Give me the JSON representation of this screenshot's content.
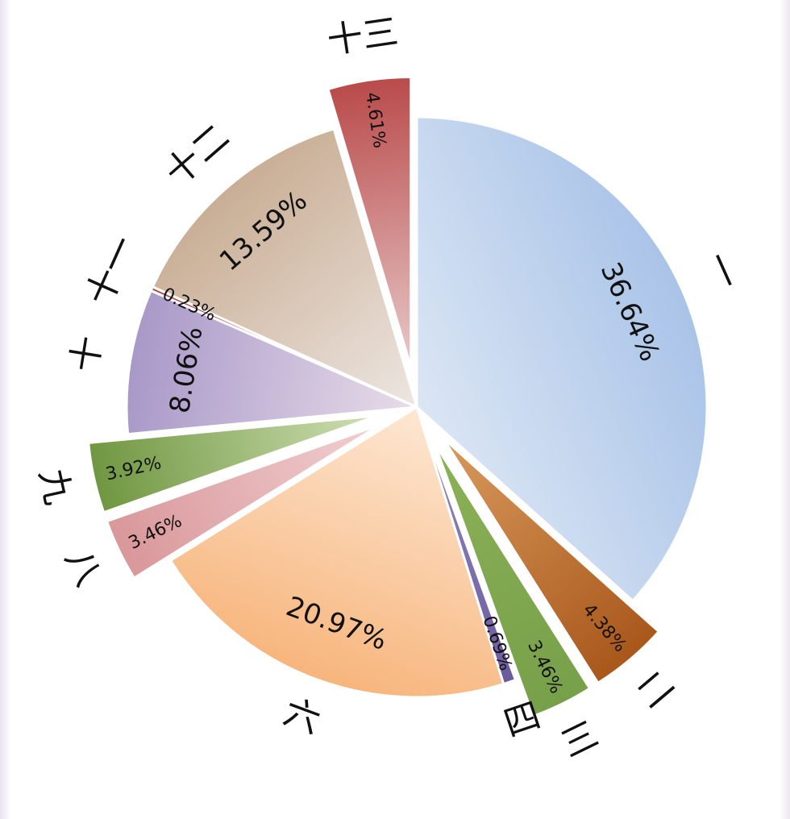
{
  "chart_data": {
    "type": "pie",
    "title": "",
    "start_angle_deg": 0,
    "direction": "clockwise",
    "slices": [
      {
        "label": "一",
        "value": 36.64,
        "value_label": "36.64%",
        "color": "#a9c3e8",
        "light": "#dbe6f4",
        "exploded": false
      },
      {
        "label": "二",
        "value": 4.38,
        "value_label": "4.38%",
        "color": "#a9571b",
        "light": "#d99a5c",
        "exploded": true
      },
      {
        "label": "三",
        "value": 3.46,
        "value_label": "3.46%",
        "color": "#77a04a",
        "light": "#8cb158",
        "exploded": true
      },
      {
        "label": "四",
        "value": 0.69,
        "value_label": "0.69%",
        "color": "#6b5a9e",
        "light": "#9a8cc6",
        "exploded": false
      },
      {
        "label": "六",
        "value": 20.97,
        "value_label": "20.97%",
        "color": "#f7b57c",
        "light": "#fde7d3",
        "exploded": false
      },
      {
        "label": "八",
        "value": 3.46,
        "value_label": "3.46%",
        "color": "#d9979a",
        "light": "#f1d0d2",
        "exploded": true
      },
      {
        "label": "九",
        "value": 3.92,
        "value_label": "3.92%",
        "color": "#6f9640",
        "light": "#cfe0b4",
        "exploded": true
      },
      {
        "label": "十",
        "value": 8.06,
        "value_label": "8.06%",
        "color": "#a898c8",
        "light": "#e8dde9",
        "exploded": false
      },
      {
        "label": "十一",
        "value": 0.23,
        "value_label": "0.23%",
        "color": "#b14c4c",
        "light": "#c97070",
        "exploded": false
      },
      {
        "label": "十二",
        "value": 13.59,
        "value_label": "13.59%",
        "color": "#c9ae95",
        "light": "#ede6e1",
        "exploded": false
      },
      {
        "label": "十三",
        "value": 4.61,
        "value_label": "4.61%",
        "color": "#b94a4a",
        "light": "#e8c9c9",
        "exploded": true
      }
    ]
  }
}
